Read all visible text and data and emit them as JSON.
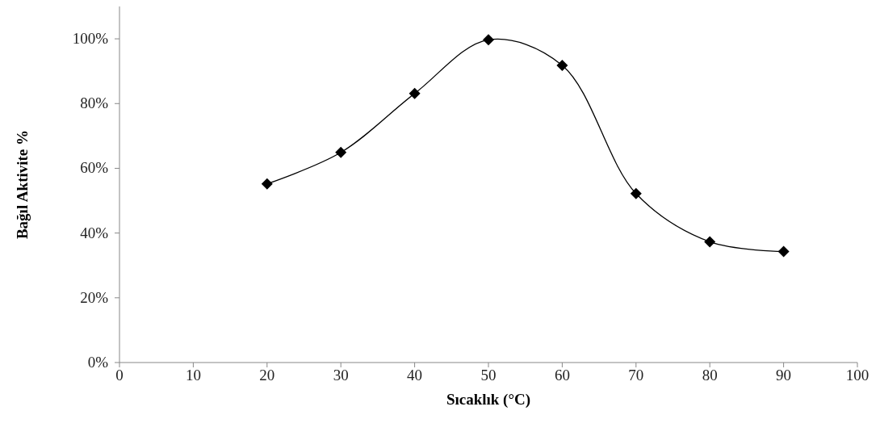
{
  "chart_data": {
    "type": "line",
    "xlabel": "Sıcaklık (°C)",
    "ylabel": "Bağıl Aktivite %",
    "x": [
      20,
      30,
      40,
      50,
      60,
      70,
      80,
      90
    ],
    "series": [
      {
        "color": "#000000",
        "values": [
          55.2,
          64.9,
          83.1,
          99.7,
          91.8,
          52.2,
          37.3,
          34.3
        ]
      }
    ],
    "xlim": [
      0,
      100
    ],
    "xticks": [
      0,
      10,
      20,
      30,
      40,
      50,
      60,
      70,
      80,
      90,
      100
    ],
    "ylim": [
      0,
      110
    ],
    "yticks": [
      {
        "value": 0,
        "label": "0%"
      },
      {
        "value": 20,
        "label": "20%"
      },
      {
        "value": 40,
        "label": "40%"
      },
      {
        "value": 60,
        "label": "60%"
      },
      {
        "value": 80,
        "label": "80%"
      },
      {
        "value": 100,
        "label": "100%"
      }
    ],
    "marker": "diamond",
    "line_style": "solid"
  }
}
